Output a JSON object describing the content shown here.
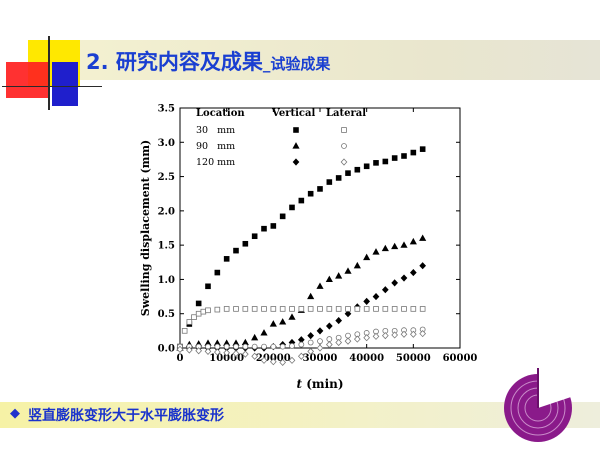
{
  "slide": {
    "title_main": "2. 研究内容及成果",
    "title_sub": "_试验成果",
    "bullet_icon": "diamond-bullet-icon",
    "bullet_text": "竖直膨胀变形大于水平膨胀变形",
    "colors": {
      "title": "#1a3fd1",
      "bullet_text": "#1a33cc",
      "deco_yellow": "#FFE800",
      "deco_red": "#FF2020",
      "deco_blue": "#1F1FCC",
      "disc": "#8a1a8a"
    }
  },
  "chart_data": {
    "type": "scatter",
    "xlabel_italic": "t",
    "xlabel_rest": " (min)",
    "ylabel": "Swelling displacement (mm)",
    "xlim": [
      0,
      60000
    ],
    "ylim": [
      0,
      3.5
    ],
    "xticks": [
      0,
      10000,
      20000,
      30000,
      40000,
      50000,
      60000
    ],
    "yticks": [
      0.0,
      0.5,
      1.0,
      1.5,
      2.0,
      2.5,
      3.0,
      3.5
    ],
    "legend": {
      "position": "top-left",
      "header_location": "Location",
      "header_vertical": "Vertical",
      "header_lateral": "Lateral",
      "rows": [
        "30   mm",
        "90   mm",
        "120 mm"
      ]
    },
    "series": [
      {
        "label": "30 mm Vertical",
        "marker": "square",
        "filled": true,
        "x": [
          0,
          2000,
          4000,
          6000,
          8000,
          10000,
          12000,
          14000,
          16000,
          18000,
          20000,
          22000,
          24000,
          26000,
          28000,
          30000,
          32000,
          34000,
          36000,
          38000,
          40000,
          42000,
          44000,
          46000,
          48000,
          50000,
          52000
        ],
        "y": [
          0.02,
          0.35,
          0.65,
          0.9,
          1.1,
          1.3,
          1.42,
          1.52,
          1.63,
          1.74,
          1.78,
          1.92,
          2.05,
          2.15,
          2.25,
          2.32,
          2.42,
          2.48,
          2.55,
          2.6,
          2.65,
          2.7,
          2.72,
          2.77,
          2.8,
          2.85,
          2.9
        ]
      },
      {
        "label": "90 mm Vertical",
        "marker": "triangle",
        "filled": true,
        "x": [
          0,
          2000,
          4000,
          6000,
          8000,
          10000,
          12000,
          14000,
          16000,
          18000,
          20000,
          22000,
          24000,
          26000,
          28000,
          30000,
          32000,
          34000,
          36000,
          38000,
          40000,
          42000,
          44000,
          46000,
          48000,
          50000,
          52000
        ],
        "y": [
          0.0,
          0.05,
          0.06,
          0.07,
          0.07,
          0.07,
          0.07,
          0.08,
          0.15,
          0.22,
          0.35,
          0.38,
          0.45,
          0.55,
          0.75,
          0.9,
          1.0,
          1.05,
          1.12,
          1.2,
          1.32,
          1.4,
          1.45,
          1.48,
          1.5,
          1.55,
          1.6
        ]
      },
      {
        "label": "120 mm Vertical",
        "marker": "diamond",
        "filled": true,
        "x": [
          0,
          2000,
          4000,
          6000,
          8000,
          10000,
          12000,
          14000,
          16000,
          18000,
          20000,
          22000,
          24000,
          26000,
          28000,
          30000,
          32000,
          34000,
          36000,
          38000,
          40000,
          42000,
          44000,
          46000,
          48000,
          50000,
          52000
        ],
        "y": [
          0.0,
          0.0,
          0.0,
          0.0,
          0.0,
          0.0,
          0.0,
          0.0,
          0.0,
          0.0,
          0.02,
          0.05,
          0.08,
          0.12,
          0.18,
          0.25,
          0.32,
          0.4,
          0.5,
          0.6,
          0.68,
          0.75,
          0.85,
          0.95,
          1.02,
          1.1,
          1.2
        ]
      },
      {
        "label": "30 mm Lateral",
        "marker": "square",
        "filled": false,
        "x": [
          0,
          1000,
          2000,
          3000,
          4000,
          5000,
          6000,
          8000,
          10000,
          12000,
          14000,
          16000,
          18000,
          20000,
          22000,
          24000,
          26000,
          28000,
          30000,
          32000,
          34000,
          36000,
          38000,
          40000,
          42000,
          44000,
          46000,
          48000,
          50000,
          52000
        ],
        "y": [
          0.02,
          0.25,
          0.38,
          0.45,
          0.5,
          0.53,
          0.55,
          0.56,
          0.57,
          0.57,
          0.57,
          0.57,
          0.57,
          0.57,
          0.57,
          0.57,
          0.57,
          0.57,
          0.57,
          0.57,
          0.57,
          0.57,
          0.57,
          0.57,
          0.57,
          0.57,
          0.57,
          0.57,
          0.57,
          0.57
        ]
      },
      {
        "label": "90 mm Lateral",
        "marker": "circle",
        "filled": false,
        "x": [
          0,
          2000,
          4000,
          6000,
          8000,
          10000,
          12000,
          14000,
          16000,
          18000,
          20000,
          22000,
          24000,
          26000,
          28000,
          30000,
          32000,
          34000,
          36000,
          38000,
          40000,
          42000,
          44000,
          46000,
          48000,
          50000,
          52000
        ],
        "y": [
          0.02,
          0.02,
          0.02,
          0.02,
          0.02,
          0.02,
          0.02,
          0.02,
          0.02,
          0.02,
          0.02,
          0.02,
          0.03,
          0.05,
          0.08,
          0.1,
          0.13,
          0.15,
          0.18,
          0.2,
          0.22,
          0.24,
          0.25,
          0.25,
          0.26,
          0.26,
          0.27
        ]
      },
      {
        "label": "120 mm Lateral",
        "marker": "diamond",
        "filled": false,
        "x": [
          0,
          2000,
          4000,
          6000,
          8000,
          10000,
          12000,
          14000,
          16000,
          18000,
          20000,
          22000,
          24000,
          26000,
          28000,
          30000,
          32000,
          34000,
          36000,
          38000,
          40000,
          42000,
          44000,
          46000,
          48000,
          50000,
          52000
        ],
        "y": [
          -0.02,
          -0.03,
          -0.04,
          -0.05,
          -0.06,
          -0.07,
          -0.08,
          -0.09,
          -0.12,
          -0.18,
          -0.2,
          -0.21,
          -0.18,
          -0.12,
          -0.05,
          0.0,
          0.05,
          0.08,
          0.1,
          0.13,
          0.15,
          0.17,
          0.18,
          0.19,
          0.2,
          0.2,
          0.21
        ]
      }
    ]
  }
}
